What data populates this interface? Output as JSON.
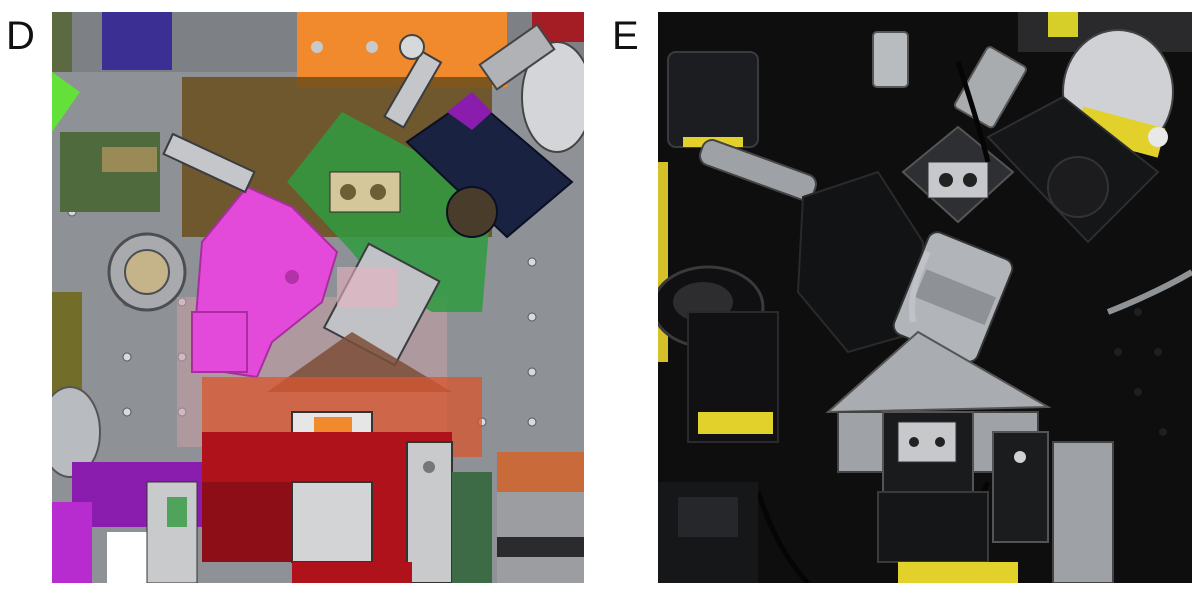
{
  "figure": {
    "panels": [
      {
        "id": "D",
        "label": "D"
      },
      {
        "id": "E",
        "label": "E"
      }
    ],
    "icons": {
      "cad_render": "cad-assembly-render-icon",
      "photo": "microscope-photo-icon"
    },
    "colors": {
      "background": "#ffffff",
      "cad_gray": "#8f9296",
      "cad_magenta": "#e44ad9",
      "cad_green": "#2f9a3f",
      "cad_red": "#b0121b",
      "cad_orange": "#f08a2c",
      "cad_purple": "#8a1cae",
      "cad_navy": "#1a2242",
      "photo_black": "#0e0e0f",
      "photo_steel": "#b9bcbf",
      "photo_yellow": "#e2d12a"
    }
  }
}
